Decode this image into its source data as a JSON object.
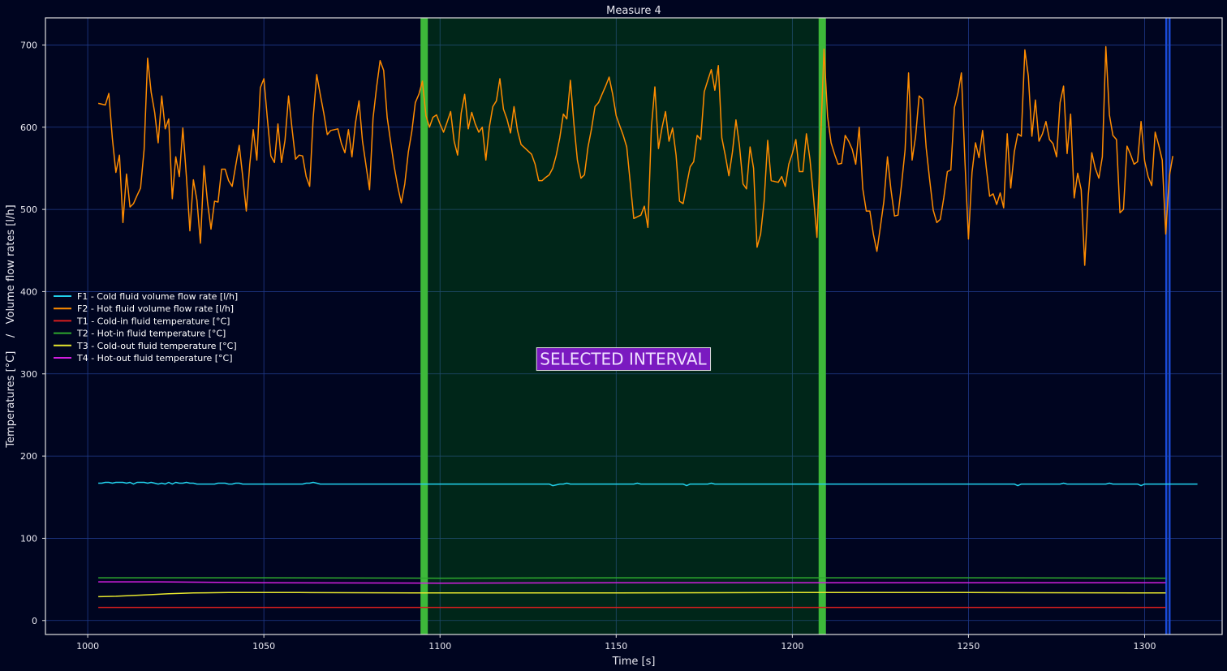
{
  "chart_data": {
    "type": "line",
    "title": "Measure 4",
    "xlabel": "Time [s]",
    "ylabel": "Temperatures [°C]    /   Volume flow rates [l/h]",
    "xlim": [
      988,
      1322
    ],
    "ylim": [
      -17,
      733
    ],
    "grid": true,
    "legend_position": "left",
    "x_ticks": [
      1000,
      1050,
      1100,
      1150,
      1200,
      1250,
      1300
    ],
    "y_ticks": [
      0,
      100,
      200,
      300,
      400,
      500,
      600,
      700
    ],
    "selected_interval": {
      "start": 1095.5,
      "end": 1208.5,
      "label": "SELECTED INTERVAL"
    },
    "end_marker": 1306.5,
    "colors": {
      "background": "#000520",
      "grid": "#1f3a8a",
      "interval_fill": "#002a18",
      "interval_edge": "#3db83a",
      "end_marker": "#1a4bd8",
      "label_box": "#7a1ac0"
    },
    "series": [
      {
        "name": "F1 - Cold fluid volume flow rate [l/h]",
        "color": "#22d3ee",
        "start": 1003,
        "step": 1,
        "values": [
          167,
          167,
          168,
          168,
          167,
          168,
          168,
          168,
          167,
          168,
          166,
          168,
          168,
          168,
          167,
          168,
          167,
          166,
          167,
          166,
          168,
          166,
          168,
          167,
          167,
          168,
          167,
          167,
          166,
          166,
          166,
          166,
          166,
          166,
          167,
          167,
          167,
          166,
          166,
          167,
          167,
          166,
          166,
          166,
          166,
          166,
          166,
          166,
          166,
          166,
          166,
          166,
          166,
          166,
          166,
          166,
          166,
          166,
          166,
          167,
          167,
          168,
          167,
          166,
          166,
          166,
          166,
          166,
          166,
          166,
          166,
          166,
          166,
          166,
          166,
          166,
          166,
          166,
          166,
          166,
          166,
          166,
          166,
          166,
          166,
          166,
          166,
          166,
          166,
          166,
          166,
          166,
          166,
          166,
          166,
          166,
          166,
          166,
          166,
          166,
          166,
          166,
          166,
          166,
          166,
          166,
          166,
          166,
          166,
          166,
          166,
          166,
          166,
          166,
          166,
          166,
          166,
          166,
          166,
          166,
          166,
          166,
          166,
          166,
          166,
          166,
          166,
          166,
          166,
          164,
          165,
          166,
          166,
          167,
          166,
          166,
          166,
          166,
          166,
          166,
          166,
          166,
          166,
          166,
          166,
          166,
          166,
          166,
          166,
          166,
          166,
          166,
          166,
          167,
          166,
          166,
          166,
          166,
          166,
          166,
          166,
          166,
          166,
          166,
          166,
          166,
          166,
          164,
          166,
          166,
          166,
          166,
          166,
          166,
          167,
          166,
          166,
          166,
          166,
          166,
          166,
          166,
          166,
          166,
          166,
          166,
          166,
          166,
          166,
          166,
          166,
          166,
          166,
          166,
          166,
          166,
          166,
          166,
          166,
          166,
          166,
          166,
          166,
          166,
          166,
          166,
          166,
          166,
          166,
          166,
          166,
          166,
          166,
          166,
          166,
          166,
          166,
          166,
          166,
          166,
          166,
          166,
          166,
          166,
          166,
          166,
          166,
          166,
          166,
          166,
          166,
          166,
          166,
          166,
          166,
          166,
          166,
          166,
          166,
          166,
          166,
          166,
          166,
          166,
          166,
          166,
          166,
          166,
          166,
          166,
          166,
          166,
          166,
          166,
          166,
          166,
          166,
          166,
          166,
          166,
          166,
          164,
          166,
          166,
          166,
          166,
          166,
          166,
          166,
          166,
          166,
          166,
          166,
          166,
          167,
          166,
          166,
          166,
          166,
          166,
          166,
          166,
          166,
          166,
          166,
          166,
          166,
          167,
          166,
          166,
          166,
          166,
          166,
          166,
          166,
          166,
          164,
          166,
          166,
          166,
          166,
          166,
          166,
          166,
          166,
          166,
          166,
          166,
          166,
          166,
          166,
          166,
          166
        ]
      },
      {
        "name": "F2 - Hot fluid volume flow rate [l/h]",
        "color": "#ff8c00",
        "start": 1003,
        "step": 1,
        "values": [
          629,
          628,
          627,
          641,
          586,
          545,
          566,
          484,
          543,
          503,
          507,
          517,
          526,
          573,
          684,
          643,
          618,
          581,
          638,
          598,
          610,
          513,
          564,
          540,
          599,
          540,
          474,
          536,
          511,
          459,
          553,
          509,
          476,
          510,
          509,
          549,
          549,
          535,
          528,
          553,
          578,
          540,
          498,
          555,
          597,
          560,
          648,
          659,
          610,
          565,
          557,
          604,
          557,
          584,
          638,
          598,
          561,
          566,
          565,
          540,
          528,
          611,
          664,
          640,
          617,
          591,
          596,
          597,
          598,
          580,
          569,
          597,
          564,
          605,
          632,
          583,
          553,
          524,
          611,
          649,
          681,
          669,
          612,
          582,
          552,
          528,
          508,
          531,
          570,
          595,
          630,
          640,
          656,
          614,
          600,
          612,
          615,
          604,
          594,
          606,
          619,
          583,
          566,
          617,
          640,
          598,
          618,
          604,
          594,
          600,
          560,
          600,
          625,
          632,
          659,
          622,
          610,
          593,
          625,
          596,
          579,
          575,
          571,
          567,
          555,
          535,
          535,
          539,
          542,
          550,
          566,
          587,
          616,
          610,
          657,
          604,
          560,
          538,
          542,
          576,
          598,
          625,
          630,
          640,
          650,
          661,
          640,
          614,
          602,
          590,
          576,
          532,
          489,
          491,
          493,
          504,
          478,
          600,
          649,
          574,
          599,
          619,
          583,
          599,
          566,
          510,
          507,
          530,
          552,
          558,
          590,
          585,
          643,
          657,
          670,
          645,
          675,
          587,
          565,
          541,
          570,
          609,
          578,
          531,
          525,
          576,
          550,
          454,
          470,
          510,
          584,
          535,
          534,
          533,
          540,
          528,
          555,
          568,
          585,
          546,
          546,
          592,
          561,
          516,
          466,
          580,
          695,
          613,
          581,
          567,
          555,
          556,
          590,
          583,
          573,
          555,
          600,
          525,
          498,
          498,
          470,
          449,
          479,
          510,
          564,
          524,
          492,
          493,
          530,
          572,
          666,
          560,
          589,
          638,
          634,
          575,
          535,
          499,
          484,
          488,
          514,
          546,
          548,
          624,
          641,
          666,
          558,
          464,
          545,
          581,
          563,
          596,
          553,
          516,
          519,
          506,
          520,
          502,
          592,
          526,
          570,
          592,
          589,
          694,
          662,
          589,
          633,
          583,
          592,
          607,
          585,
          580,
          564,
          630,
          650,
          568,
          616,
          514,
          544,
          524,
          432,
          516,
          569,
          550,
          538,
          564,
          698,
          615,
          590,
          585,
          496,
          500,
          577,
          567,
          555,
          558,
          607,
          559,
          540,
          529,
          594,
          578,
          560,
          470,
          540,
          565
        ]
      },
      {
        "name": "T1 - Cold-in fluid temperature [°C]",
        "color": "#d81e1e",
        "points": [
          [
            1003,
            16
          ],
          [
            1100,
            16
          ],
          [
            1200,
            16
          ],
          [
            1306,
            16
          ]
        ]
      },
      {
        "name": "T2 - Hot-in fluid temperature [°C]",
        "color": "#2ea82e",
        "points": [
          [
            1003,
            52
          ],
          [
            1050,
            52
          ],
          [
            1100,
            51.5
          ],
          [
            1150,
            52
          ],
          [
            1200,
            52
          ],
          [
            1250,
            52
          ],
          [
            1306,
            51.5
          ]
        ]
      },
      {
        "name": "T3 - Cold-out fluid temperature [°C]",
        "color": "#e6e62e",
        "points": [
          [
            1003,
            29
          ],
          [
            1008,
            29.5
          ],
          [
            1013,
            30.5
          ],
          [
            1018,
            31.5
          ],
          [
            1023,
            32.5
          ],
          [
            1030,
            33.5
          ],
          [
            1040,
            34
          ],
          [
            1060,
            34
          ],
          [
            1100,
            33.5
          ],
          [
            1150,
            33.5
          ],
          [
            1200,
            34
          ],
          [
            1250,
            34
          ],
          [
            1306,
            33.5
          ]
        ]
      },
      {
        "name": "T4 - Hot-out fluid temperature [°C]",
        "color": "#d21ee0",
        "points": [
          [
            1003,
            47
          ],
          [
            1020,
            47
          ],
          [
            1050,
            46
          ],
          [
            1100,
            45.5
          ],
          [
            1150,
            46
          ],
          [
            1200,
            46
          ],
          [
            1250,
            46
          ],
          [
            1306,
            46
          ]
        ]
      }
    ]
  }
}
